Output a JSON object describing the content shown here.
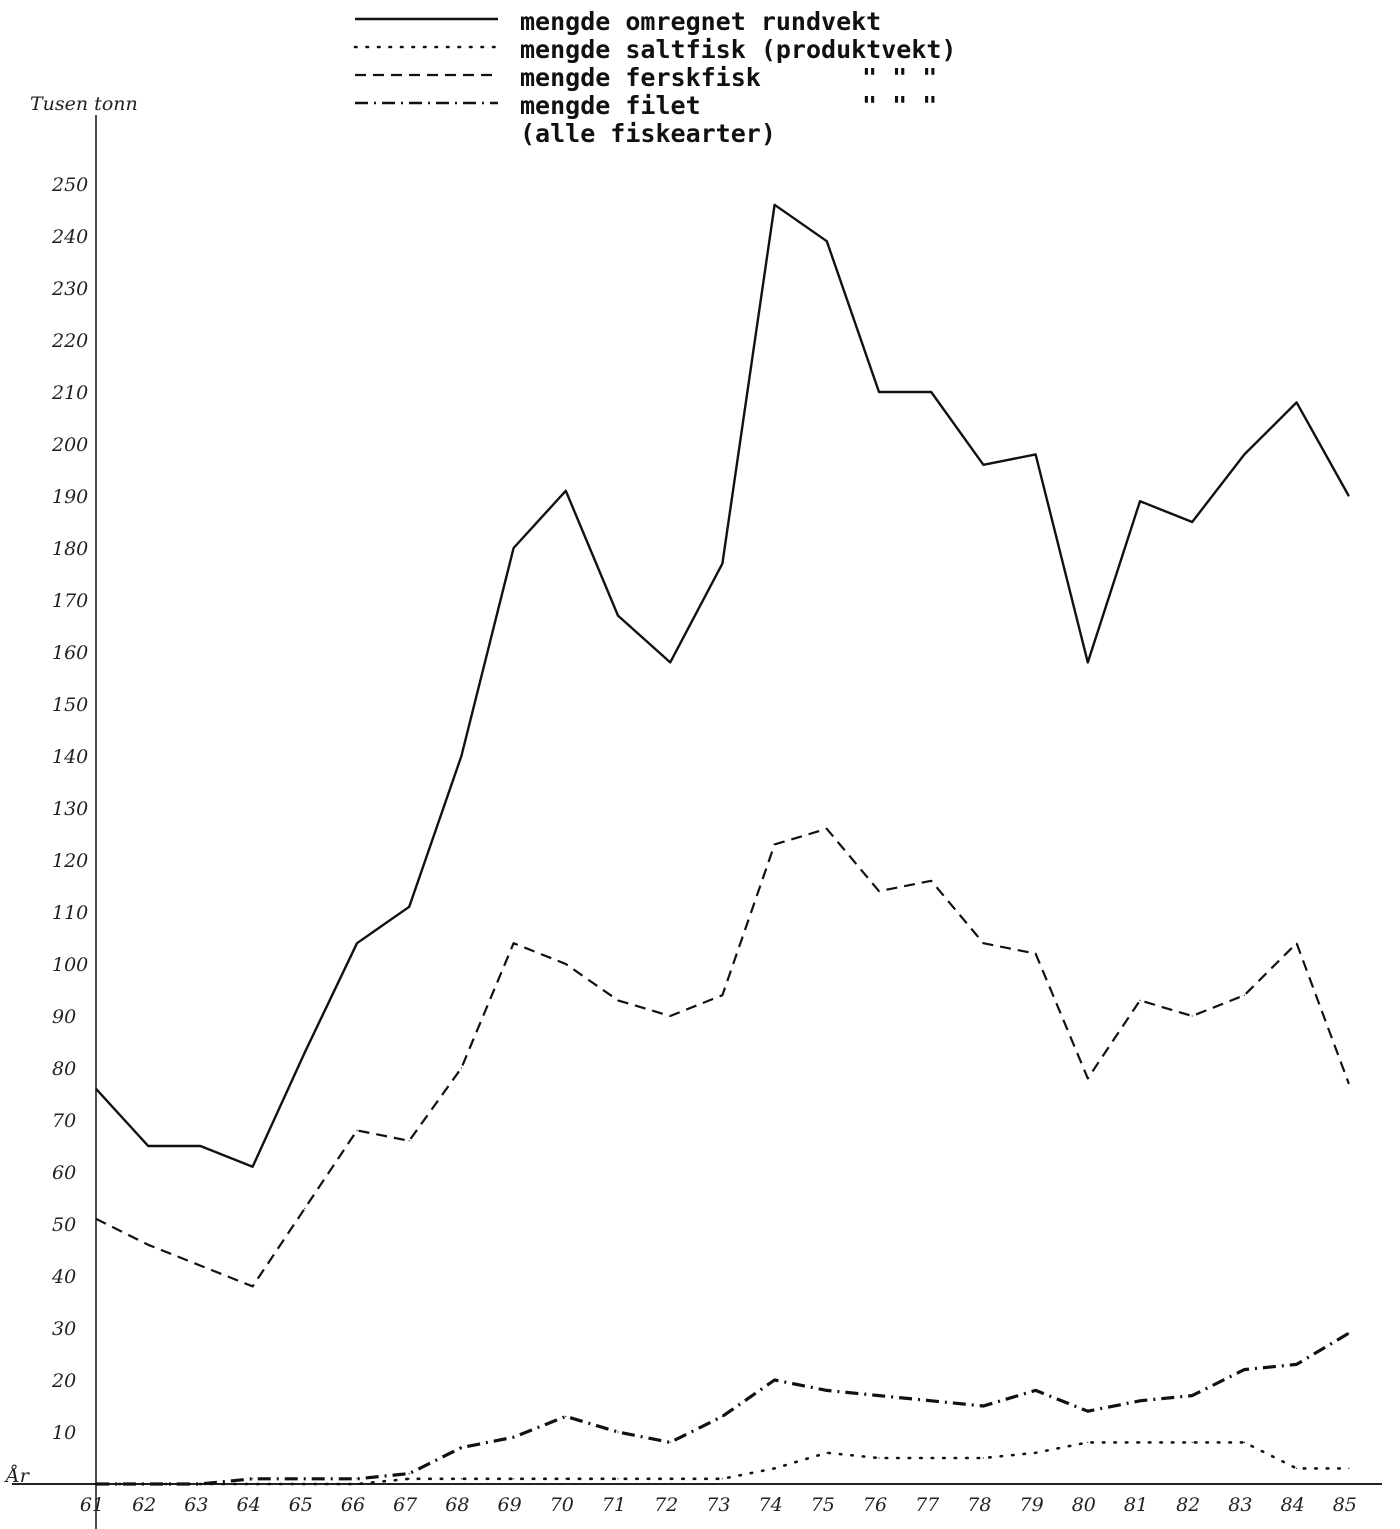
{
  "chart_data": {
    "type": "line",
    "ylabel": "Tusen tonn",
    "origin_label": "År",
    "ylim": [
      0,
      260
    ],
    "yticks": [
      10,
      20,
      30,
      40,
      50,
      60,
      70,
      80,
      90,
      100,
      110,
      120,
      130,
      140,
      150,
      160,
      170,
      180,
      190,
      200,
      210,
      220,
      230,
      240,
      250
    ],
    "categories": [
      "61",
      "62",
      "63",
      "64",
      "65",
      "66",
      "67",
      "68",
      "69",
      "70",
      "71",
      "72",
      "73",
      "74",
      "75",
      "76",
      "77",
      "78",
      "79",
      "80",
      "81",
      "82",
      "83",
      "84",
      "85"
    ],
    "series": [
      {
        "name": "mengde omregnet rundvekt",
        "style": "solid",
        "values": [
          76,
          65,
          65,
          61,
          83,
          104,
          111,
          140,
          180,
          191,
          167,
          158,
          177,
          246,
          239,
          210,
          210,
          196,
          198,
          158,
          189,
          185,
          198,
          208,
          190
        ]
      },
      {
        "name": "mengde saltfisk (produktvekt)",
        "style": "dotted",
        "values": [
          0,
          0,
          0,
          0,
          0,
          0,
          1,
          1,
          1,
          1,
          1,
          1,
          1,
          3,
          6,
          5,
          5,
          5,
          6,
          8,
          8,
          8,
          8,
          3,
          3
        ]
      },
      {
        "name": "mengde ferskfisk",
        "style": "dashed",
        "values": [
          51,
          46,
          42,
          38,
          53,
          68,
          66,
          80,
          104,
          100,
          93,
          90,
          94,
          123,
          126,
          114,
          116,
          104,
          102,
          78,
          93,
          90,
          94,
          104,
          77
        ]
      },
      {
        "name": "mengde filet",
        "style": "dashdot",
        "values": [
          0,
          0,
          0,
          1,
          1,
          1,
          2,
          7,
          9,
          13,
          10,
          8,
          13,
          20,
          18,
          17,
          16,
          15,
          18,
          14,
          16,
          17,
          22,
          23,
          29
        ]
      }
    ],
    "legend": {
      "placement": "top",
      "lines": [
        {
          "text": "mengde omregnet rundvekt",
          "style": "solid"
        },
        {
          "text": "mengde saltfisk (produktvekt)",
          "style": "dotted"
        },
        {
          "text": "mengde ferskfisk",
          "style": "dashed",
          "ditto": "\" \" \""
        },
        {
          "text": "mengde filet",
          "style": "dashdot",
          "ditto": "\" \" \""
        },
        {
          "text": "(alle fiskearter)",
          "style": "none"
        }
      ]
    },
    "grid": false
  }
}
